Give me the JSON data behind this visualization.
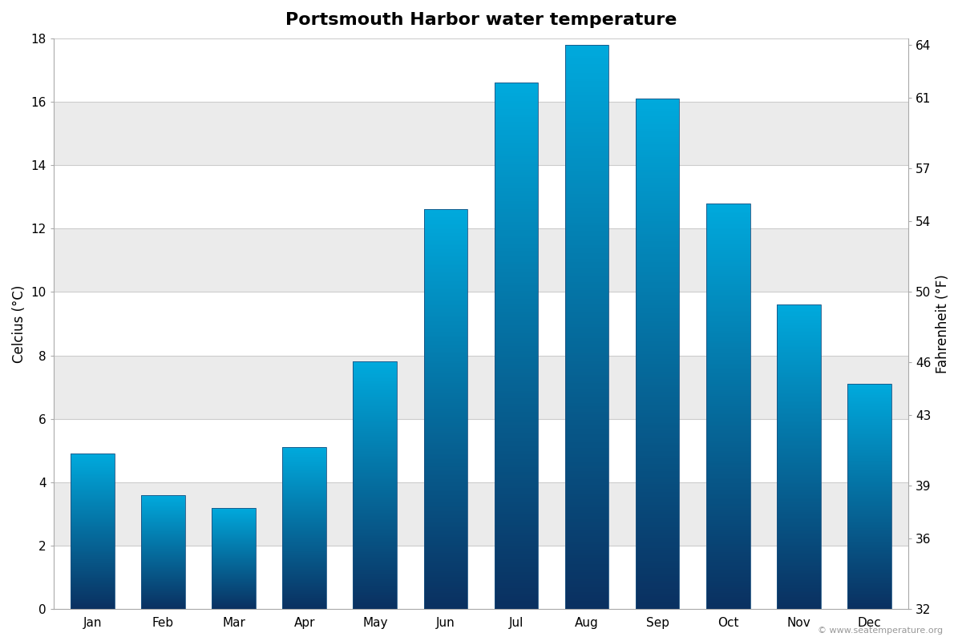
{
  "title": "Portsmouth Harbor water temperature",
  "months": [
    "Jan",
    "Feb",
    "Mar",
    "Apr",
    "May",
    "Jun",
    "Jul",
    "Aug",
    "Sep",
    "Oct",
    "Nov",
    "Dec"
  ],
  "celsius_values": [
    4.9,
    3.6,
    3.2,
    5.1,
    7.8,
    12.6,
    16.6,
    17.8,
    16.1,
    12.8,
    9.6,
    7.1
  ],
  "ylabel_left": "Celcius (°C)",
  "ylabel_right": "Fahrenheit (°F)",
  "ylim_celsius": [
    0,
    18
  ],
  "yticks_celsius": [
    0,
    2,
    4,
    6,
    8,
    10,
    12,
    14,
    16,
    18
  ],
  "yticks_fahrenheit": [
    32,
    36,
    39,
    43,
    46,
    50,
    54,
    57,
    61,
    64
  ],
  "band_colors": [
    "#ffffff",
    "#ebebeb"
  ],
  "bar_bottom_color": "#0a3060",
  "bar_top_color": "#00aadd",
  "bar_width": 0.62,
  "gradient_steps": 200,
  "title_fontsize": 16,
  "axis_label_fontsize": 12,
  "tick_fontsize": 11,
  "watermark": "© www.seatemperature.org",
  "fig_bg_color": "#ffffff",
  "plot_bg_color": "#ffffff"
}
